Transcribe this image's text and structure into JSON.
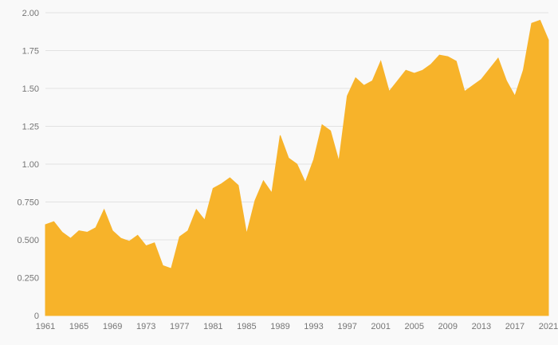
{
  "chart_data": {
    "type": "area",
    "title": "",
    "xlabel": "",
    "ylabel": "",
    "x": [
      1961,
      1962,
      1963,
      1964,
      1965,
      1966,
      1967,
      1968,
      1969,
      1970,
      1971,
      1972,
      1973,
      1974,
      1975,
      1976,
      1977,
      1978,
      1979,
      1980,
      1981,
      1982,
      1983,
      1984,
      1985,
      1986,
      1987,
      1988,
      1989,
      1990,
      1991,
      1992,
      1993,
      1994,
      1995,
      1996,
      1997,
      1998,
      1999,
      2000,
      2001,
      2002,
      2003,
      2004,
      2005,
      2006,
      2007,
      2008,
      2009,
      2010,
      2011,
      2012,
      2013,
      2014,
      2015,
      2016,
      2017,
      2018,
      2019,
      2020,
      2021
    ],
    "values": [
      0.6,
      0.62,
      0.55,
      0.51,
      0.56,
      0.55,
      0.58,
      0.7,
      0.56,
      0.51,
      0.49,
      0.53,
      0.46,
      0.48,
      0.33,
      0.31,
      0.52,
      0.56,
      0.7,
      0.63,
      0.84,
      0.87,
      0.91,
      0.86,
      0.54,
      0.76,
      0.89,
      0.81,
      1.19,
      1.04,
      1.0,
      0.88,
      1.03,
      1.26,
      1.22,
      1.02,
      1.45,
      1.57,
      1.52,
      1.55,
      1.68,
      1.48,
      1.55,
      1.62,
      1.6,
      1.62,
      1.66,
      1.72,
      1.71,
      1.68,
      1.48,
      1.52,
      1.56,
      1.63,
      1.7,
      1.55,
      1.45,
      1.62,
      1.93,
      1.95,
      1.82
    ],
    "xlim": [
      1961,
      2021
    ],
    "ylim": [
      0,
      2.0
    ],
    "xticks": [
      1961,
      1965,
      1969,
      1973,
      1977,
      1981,
      1985,
      1989,
      1993,
      1997,
      2001,
      2005,
      2009,
      2013,
      2017,
      2021
    ],
    "xtick_labels": [
      "1961",
      "1965",
      "1969",
      "1973",
      "1977",
      "1981",
      "1985",
      "1989",
      "1993",
      "1997",
      "2001",
      "2005",
      "2009",
      "2013",
      "2017",
      "2021"
    ],
    "yticks": [
      0,
      0.25,
      0.5,
      0.75,
      1.0,
      1.25,
      1.5,
      1.75,
      2.0
    ],
    "ytick_labels": [
      "0",
      "0.250",
      "0.500",
      "0.750",
      "1.00",
      "1.25",
      "1.50",
      "1.75",
      "2.00"
    ],
    "grid": true,
    "legend": "none",
    "colors": {
      "area_fill": "#f7b32a",
      "area_stroke": "#f7b32a",
      "gridline": "#e2e2e2",
      "baseline": "#d6d6d6",
      "tick_label": "#757575",
      "background": "#f9f9f9"
    }
  }
}
